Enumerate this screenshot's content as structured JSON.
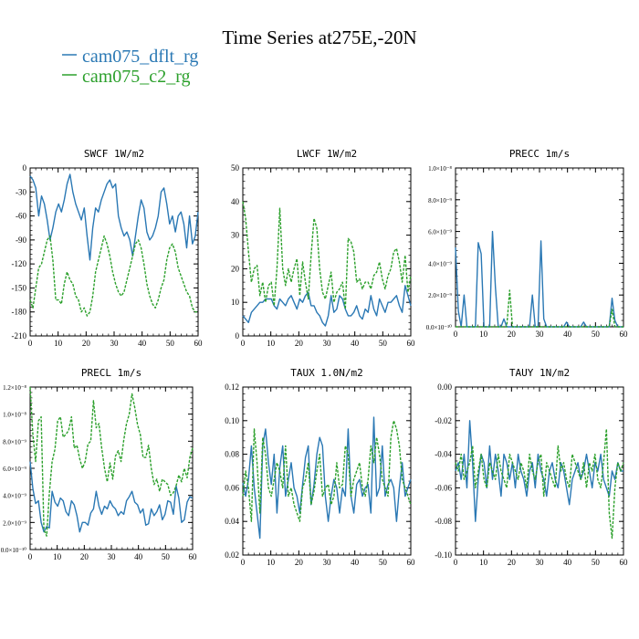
{
  "figure": {
    "title": "Time Series at275E,-20N",
    "legend": [
      {
        "name": "cam075_dflt_rg",
        "color": "#2a78b4",
        "dash": "solid"
      },
      {
        "name": "cam075_c2_rg",
        "color": "#2ca02c",
        "dash": "dashed"
      }
    ]
  },
  "chart_data": [
    {
      "type": "line",
      "title": "SWCF   1W/m2",
      "xlim": [
        0,
        60
      ],
      "ylim": [
        -210,
        0
      ],
      "xticks": [
        "0",
        "10",
        "20",
        "30",
        "40",
        "50",
        "60"
      ],
      "yticks": [
        "0",
        "-30",
        "-60",
        "-90",
        "-120",
        "-150",
        "-180",
        "-210"
      ],
      "series": [
        {
          "name": "cam075_dflt_rg",
          "values": [
            -10,
            -15,
            -25,
            -60,
            -35,
            -45,
            -65,
            -90,
            -75,
            -55,
            -45,
            -55,
            -40,
            -20,
            -8,
            -30,
            -45,
            -55,
            -65,
            -50,
            -85,
            -115,
            -75,
            -50,
            -55,
            -40,
            -30,
            -20,
            -15,
            -25,
            -20,
            -60,
            -75,
            -85,
            -80,
            -90,
            -110,
            -85,
            -60,
            -40,
            -50,
            -80,
            -90,
            -85,
            -75,
            -60,
            -30,
            -25,
            -45,
            -70,
            -60,
            -80,
            -60,
            -55,
            -70,
            -100,
            -60,
            -95,
            -85,
            -55
          ]
        },
        {
          "name": "cam075_c2_rg",
          "values": [
            -165,
            -175,
            -150,
            -125,
            -120,
            -105,
            -90,
            -85,
            -115,
            -165,
            -165,
            -170,
            -145,
            -130,
            -140,
            -145,
            -160,
            -165,
            -180,
            -175,
            -185,
            -180,
            -160,
            -130,
            -115,
            -100,
            -85,
            -95,
            -110,
            -130,
            -145,
            -155,
            -160,
            -155,
            -140,
            -125,
            -110,
            -95,
            -90,
            -100,
            -120,
            -145,
            -160,
            -170,
            -175,
            -165,
            -150,
            -140,
            -115,
            -100,
            -95,
            -105,
            -125,
            -135,
            -145,
            -155,
            -160,
            -175,
            -180,
            -180
          ]
        }
      ]
    },
    {
      "type": "line",
      "title": "LWCF   1W/m2",
      "xlim": [
        0,
        60
      ],
      "ylim": [
        0,
        50
      ],
      "xticks": [
        "0",
        "10",
        "20",
        "30",
        "40",
        "50",
        "60"
      ],
      "yticks": [
        "0",
        "10",
        "20",
        "30",
        "40",
        "50"
      ],
      "series": [
        {
          "name": "cam075_dflt_rg",
          "values": [
            6,
            5,
            4,
            7,
            8,
            9,
            10,
            10,
            11,
            11,
            11,
            9,
            8,
            11,
            10,
            9,
            11,
            12,
            10,
            8,
            11,
            10,
            12,
            13,
            9,
            9,
            7,
            6,
            4,
            3,
            6,
            12,
            7,
            8,
            12,
            11,
            8,
            6,
            6,
            7,
            9,
            6,
            5,
            8,
            7,
            12,
            8,
            6,
            11,
            9,
            7,
            10,
            10,
            11,
            12,
            9,
            7,
            15,
            12,
            9
          ]
        },
        {
          "name": "cam075_c2_rg",
          "values": [
            40,
            35,
            25,
            16,
            20,
            21,
            12,
            16,
            10,
            15,
            16,
            9,
            20,
            38,
            20,
            15,
            20,
            16,
            20,
            23,
            12,
            22,
            16,
            11,
            24,
            35,
            32,
            20,
            13,
            11,
            15,
            19,
            10,
            13,
            14,
            16,
            8,
            29,
            28,
            25,
            16,
            17,
            14,
            16,
            16,
            14,
            18,
            19,
            22,
            17,
            14,
            18,
            20,
            25,
            26,
            22,
            16,
            24,
            13,
            18
          ]
        }
      ]
    },
    {
      "type": "line",
      "title": "PRECC   1m/s",
      "xlim": [
        0,
        60
      ],
      "ylim": [
        0,
        1e-08
      ],
      "xticks": [
        "0",
        "10",
        "20",
        "30",
        "40",
        "50",
        "60"
      ],
      "yticks": [
        "0.0×10⁻¹⁰",
        "2.0×10⁻⁹",
        "4.0×10⁻⁹",
        "6.0×10⁻⁹",
        "8.0×10⁻⁹",
        "1.0×10⁻⁸"
      ],
      "series": [
        {
          "name": "cam075_dflt_rg",
          "values": [
            5e-09,
            1e-09,
            0,
            2e-09,
            0,
            0,
            0,
            0,
            5.3e-09,
            4.6e-09,
            0,
            0,
            0,
            6e-09,
            2.5e-09,
            0,
            0,
            5e-10,
            0,
            0,
            0,
            0,
            0,
            0,
            0,
            0,
            0,
            2e-09,
            0,
            0,
            5.4e-09,
            5e-10,
            0,
            0,
            0,
            0,
            0,
            0,
            0,
            3e-10,
            0,
            0,
            0,
            0,
            0,
            3e-10,
            0,
            0,
            0,
            0,
            0,
            0,
            0,
            0,
            0,
            1.8e-09,
            4e-10,
            0,
            0,
            0
          ]
        },
        {
          "name": "cam075_c2_rg",
          "values": [
            0,
            0,
            0,
            0,
            0,
            0,
            0,
            0,
            0,
            0,
            0,
            0,
            0,
            0,
            0,
            0,
            0,
            0,
            0,
            2.3e-09,
            0,
            0,
            0,
            0,
            0,
            0,
            0,
            0,
            0,
            0,
            0,
            0,
            0,
            0,
            0,
            0,
            0,
            0,
            0,
            0,
            0,
            0,
            0,
            0,
            0,
            0,
            0,
            0,
            0,
            0,
            0,
            0,
            0,
            0,
            0,
            1.1e-09,
            0,
            0,
            0,
            0
          ]
        }
      ]
    },
    {
      "type": "line",
      "title": "PRECL   1m/s",
      "xlim": [
        0,
        60
      ],
      "ylim": [
        0,
        1.2e-08
      ],
      "xticks": [
        "0",
        "10",
        "20",
        "30",
        "40",
        "50",
        "60"
      ],
      "yticks": [
        "0.0×10⁻¹⁰",
        "2.0×10⁻⁹",
        "4.0×10⁻⁹",
        "6.0×10⁻⁹",
        "8.0×10⁻⁹",
        "1.0×10⁻⁸",
        "1.2×10⁻⁸"
      ],
      "series": [
        {
          "name": "cam075_dflt_rg",
          "values": [
            6.5e-09,
            4.5e-09,
            3.4e-09,
            3.6e-09,
            2e-09,
            1.3e-09,
            1.7e-09,
            1.6e-09,
            4.3e-09,
            3.5e-09,
            3.2e-09,
            3.8e-09,
            3.6e-09,
            2.8e-09,
            2.5e-09,
            3.6e-09,
            3.3e-09,
            2.5e-09,
            1.3e-09,
            2e-09,
            2e-09,
            1.8e-09,
            2.7e-09,
            3e-09,
            4.3e-09,
            3.2e-09,
            2.6e-09,
            3.2e-09,
            3e-09,
            3.6e-09,
            3.2e-09,
            3e-09,
            2.5e-09,
            2.8e-09,
            2.6e-09,
            3.6e-09,
            3.9e-09,
            4.3e-09,
            3.5e-09,
            3.3e-09,
            2.7e-09,
            3e-09,
            1.8e-09,
            1.9e-09,
            3e-09,
            2.5e-09,
            2.8e-09,
            3.3e-09,
            2.2e-09,
            2.6e-09,
            3.6e-09,
            3.5e-09,
            2.6e-09,
            4.7e-09,
            3.8e-09,
            2e-09,
            2.2e-09,
            3.5e-09,
            3.9e-09,
            3.8e-09
          ]
        },
        {
          "name": "cam075_c2_rg",
          "values": [
            1.2e-08,
            8.5e-09,
            6.5e-09,
            9.5e-09,
            9.8e-09,
            1.5e-09,
            1e-09,
            4.2e-09,
            6.5e-09,
            7.4e-09,
            9.5e-09,
            9.8e-09,
            8.3e-09,
            8.5e-09,
            8.8e-09,
            9.8e-09,
            7.5e-09,
            7.7e-09,
            6.7e-09,
            6e-09,
            6.5e-09,
            7.8e-09,
            8e-09,
            1.1e-08,
            9e-09,
            9.3e-09,
            7.5e-09,
            6e-09,
            5e-09,
            6.4e-09,
            5.2e-09,
            6.9e-09,
            7.3e-09,
            6.5e-09,
            8.1e-09,
            9.3e-09,
            1e-08,
            1.15e-08,
            1.05e-08,
            9.2e-09,
            8.5e-09,
            6.8e-09,
            6.8e-09,
            7.7e-09,
            6e-09,
            4.8e-09,
            5.2e-09,
            4.3e-09,
            5.2e-09,
            5e-09,
            4.8e-09,
            4e-09,
            4.2e-09,
            4.7e-09,
            5.5e-09,
            5e-09,
            6e-09,
            5.3e-09,
            6.8e-09,
            7.5e-09
          ]
        }
      ]
    },
    {
      "type": "line",
      "title": "TAUX   1.0N/m2",
      "xlim": [
        0,
        60
      ],
      "ylim": [
        0.02,
        0.12
      ],
      "xticks": [
        "0",
        "10",
        "20",
        "30",
        "40",
        "50",
        "60"
      ],
      "yticks": [
        "0.02",
        "0.04",
        "0.06",
        "0.08",
        "0.10",
        "0.12"
      ],
      "series": [
        {
          "name": "cam075_dflt_rg",
          "values": [
            0.063,
            0.055,
            0.065,
            0.085,
            0.06,
            0.045,
            0.03,
            0.085,
            0.095,
            0.075,
            0.062,
            0.08,
            0.045,
            0.072,
            0.085,
            0.055,
            0.065,
            0.075,
            0.06,
            0.055,
            0.045,
            0.062,
            0.078,
            0.085,
            0.05,
            0.062,
            0.08,
            0.09,
            0.085,
            0.055,
            0.04,
            0.055,
            0.065,
            0.06,
            0.045,
            0.06,
            0.055,
            0.095,
            0.055,
            0.045,
            0.062,
            0.065,
            0.055,
            0.06,
            0.062,
            0.045,
            0.102,
            0.055,
            0.06,
            0.085,
            0.055,
            0.062,
            0.065,
            0.06,
            0.04,
            0.06,
            0.075,
            0.055,
            0.06,
            0.065
          ]
        },
        {
          "name": "cam075_c2_rg",
          "values": [
            0.055,
            0.07,
            0.06,
            0.04,
            0.095,
            0.075,
            0.045,
            0.09,
            0.08,
            0.06,
            0.055,
            0.065,
            0.075,
            0.07,
            0.06,
            0.085,
            0.055,
            0.06,
            0.05,
            0.045,
            0.04,
            0.06,
            0.065,
            0.075,
            0.05,
            0.058,
            0.07,
            0.08,
            0.055,
            0.06,
            0.062,
            0.05,
            0.055,
            0.075,
            0.06,
            0.062,
            0.085,
            0.08,
            0.055,
            0.065,
            0.07,
            0.075,
            0.06,
            0.055,
            0.065,
            0.085,
            0.075,
            0.09,
            0.08,
            0.065,
            0.06,
            0.055,
            0.09,
            0.1,
            0.095,
            0.085,
            0.065,
            0.06,
            0.055,
            0.05
          ]
        }
      ]
    },
    {
      "type": "line",
      "title": "TAUY   1N/m2",
      "xlim": [
        0,
        60
      ],
      "ylim": [
        -0.1,
        0.0
      ],
      "xticks": [
        "0",
        "10",
        "20",
        "30",
        "40",
        "50",
        "60"
      ],
      "yticks": [
        "-0.10",
        "-0.08",
        "-0.06",
        "-0.04",
        "-0.02",
        "0.00"
      ],
      "series": [
        {
          "name": "cam075_dflt_rg",
          "values": [
            -0.05,
            -0.045,
            -0.055,
            -0.04,
            -0.06,
            -0.02,
            -0.045,
            -0.08,
            -0.055,
            -0.04,
            -0.045,
            -0.06,
            -0.035,
            -0.055,
            -0.04,
            -0.05,
            -0.065,
            -0.04,
            -0.045,
            -0.055,
            -0.045,
            -0.06,
            -0.04,
            -0.05,
            -0.055,
            -0.065,
            -0.05,
            -0.045,
            -0.06,
            -0.04,
            -0.05,
            -0.055,
            -0.065,
            -0.05,
            -0.045,
            -0.055,
            -0.06,
            -0.045,
            -0.05,
            -0.06,
            -0.07,
            -0.055,
            -0.05,
            -0.045,
            -0.055,
            -0.05,
            -0.04,
            -0.05,
            -0.06,
            -0.045,
            -0.05,
            -0.04,
            -0.055,
            -0.06,
            -0.065,
            -0.05,
            -0.055,
            -0.045,
            -0.05,
            -0.05
          ]
        },
        {
          "name": "cam075_c2_rg",
          "values": [
            -0.045,
            -0.05,
            -0.04,
            -0.055,
            -0.05,
            -0.045,
            -0.035,
            -0.06,
            -0.05,
            -0.04,
            -0.055,
            -0.06,
            -0.045,
            -0.05,
            -0.055,
            -0.04,
            -0.05,
            -0.055,
            -0.06,
            -0.04,
            -0.045,
            -0.05,
            -0.055,
            -0.045,
            -0.05,
            -0.06,
            -0.04,
            -0.05,
            -0.055,
            -0.045,
            -0.04,
            -0.065,
            -0.045,
            -0.05,
            -0.055,
            -0.06,
            -0.035,
            -0.05,
            -0.045,
            -0.055,
            -0.06,
            -0.04,
            -0.045,
            -0.05,
            -0.055,
            -0.045,
            -0.06,
            -0.045,
            -0.05,
            -0.04,
            -0.055,
            -0.06,
            -0.045,
            -0.025,
            -0.075,
            -0.09,
            -0.06,
            -0.045,
            -0.05,
            -0.045
          ]
        }
      ]
    }
  ]
}
